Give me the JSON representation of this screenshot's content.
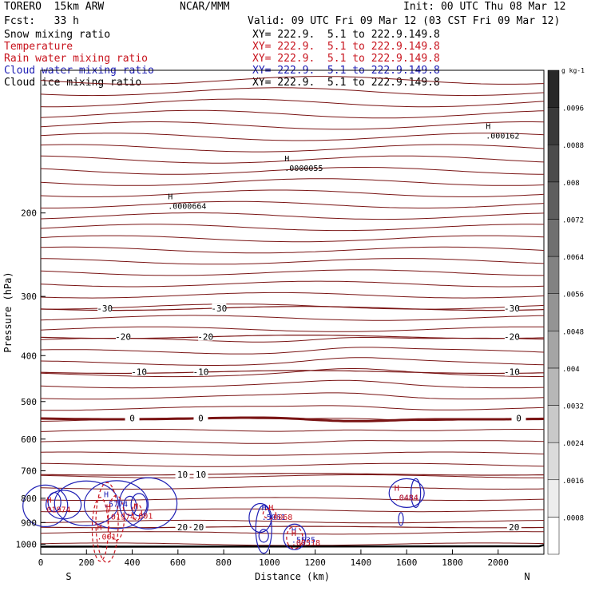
{
  "header": {
    "model": "TORERO  15km ARW",
    "org": "NCAR/MMM",
    "init": "Init: 00 UTC Thu 08 Mar 12",
    "fcst": "Fcst:   33 h",
    "valid": "Valid: 09 UTC Fri 09 Mar 12 (03 CST Fri 09 Mar 12)"
  },
  "fields": [
    {
      "name": "Snow mixing ratio",
      "xy": "XY= 222.9.  5.1 to 222.9.149.8",
      "color": "#000000"
    },
    {
      "name": "Temperature",
      "xy": "XY= 222.9.  5.1 to 222.9.149.8",
      "color": "#c8141e"
    },
    {
      "name": "Rain water mixing ratio",
      "xy": "XY= 222.9.  5.1 to 222.9.149.8",
      "color": "#c8141e"
    },
    {
      "name": "Cloud water mixing ratio",
      "xy": "XY= 222.9.  5.1 to 222.9.149.8",
      "color": "#1e1eb4"
    },
    {
      "name": "Cloud ice mixing ratio",
      "xy": "XY= 222.9.  5.1 to 222.9.149.8",
      "color": "#000000"
    }
  ],
  "chart_data": {
    "type": "contour cross-section",
    "xlabel": "Distance (km)",
    "ylabel": "Pressure (hPa)",
    "xlim": [
      0,
      2200
    ],
    "ylim": [
      1050,
      100
    ],
    "x_ticks": [
      0,
      200,
      400,
      600,
      800,
      1000,
      1200,
      1400,
      1600,
      1800,
      2000
    ],
    "y_ticks": [
      200,
      300,
      400,
      500,
      600,
      700,
      800,
      900,
      1000
    ],
    "left_end_label": "S",
    "right_end_label": "N",
    "colorbar": {
      "unit": "g kg-1",
      "levels": [
        ".0008",
        ".0016",
        ".0024",
        ".0032",
        ".004",
        ".0048",
        ".0056",
        ".0064",
        ".0072",
        ".008",
        ".0088",
        ".0096"
      ]
    },
    "isotherms": [
      {
        "t": -30,
        "p": 318,
        "labels": [
          {
            "x": 280,
            "text": "-30"
          },
          {
            "x": 780,
            "text": "-30"
          },
          {
            "x": 2060,
            "text": "-30"
          }
        ]
      },
      {
        "t": -20,
        "p": 365,
        "labels": [
          {
            "x": 360,
            "text": "-20"
          },
          {
            "x": 720,
            "text": "-20"
          },
          {
            "x": 2060,
            "text": "-20"
          }
        ]
      },
      {
        "t": -10,
        "p": 433,
        "labels": [
          {
            "x": 430,
            "text": "-10"
          },
          {
            "x": 700,
            "text": "-10"
          },
          {
            "x": 2060,
            "text": "-10"
          }
        ]
      },
      {
        "t": 0,
        "p": 542,
        "labels": [
          {
            "x": 400,
            "text": "0"
          },
          {
            "x": 700,
            "text": "0"
          },
          {
            "x": 2090,
            "text": "0"
          }
        ]
      },
      {
        "t": 10,
        "p": 712,
        "labels": [
          {
            "x": 620,
            "text": "10"
          },
          {
            "x": 700,
            "text": "10"
          }
        ]
      },
      {
        "t": 20,
        "p": 920,
        "labels": [
          {
            "x": 620,
            "text": "20"
          },
          {
            "x": 690,
            "text": "20"
          },
          {
            "x": 2070,
            "text": "20"
          }
        ]
      }
    ],
    "maxima": [
      {
        "field": "snow",
        "x": 570,
        "p": 190,
        "label": ".0000664"
      },
      {
        "field": "snow",
        "x": 1080,
        "p": 158,
        "label": ".0000055"
      },
      {
        "field": "snow",
        "x": 1960,
        "p": 135,
        "label": ".000162"
      },
      {
        "field": "cloud water",
        "x": 290,
        "p": 808,
        "label": ".5774"
      },
      {
        "field": "cloud water",
        "x": 980,
        "p": 862,
        "label": ".5061"
      },
      {
        "field": "cloud water",
        "x": 1110,
        "p": 962,
        "label": ".5535"
      },
      {
        "field": "cloud water",
        "x": 1560,
        "p": 783,
        "label": ".0484"
      },
      {
        "field": "rain water",
        "x": 40,
        "p": 830,
        "label": "01974"
      },
      {
        "field": "rain water",
        "x": 300,
        "p": 860,
        "label": ".01974"
      },
      {
        "field": "rain water",
        "x": 420,
        "p": 857,
        "label": ".001"
      },
      {
        "field": "rain water",
        "x": 260,
        "p": 948,
        "label": ".001"
      },
      {
        "field": "rain water",
        "x": 1010,
        "p": 862,
        "label": ".0068"
      },
      {
        "field": "rain water",
        "x": 1110,
        "p": 975,
        "label": ".00518"
      },
      {
        "field": "rain water",
        "x": 1560,
        "p": 783,
        "label": ".0484"
      }
    ]
  }
}
